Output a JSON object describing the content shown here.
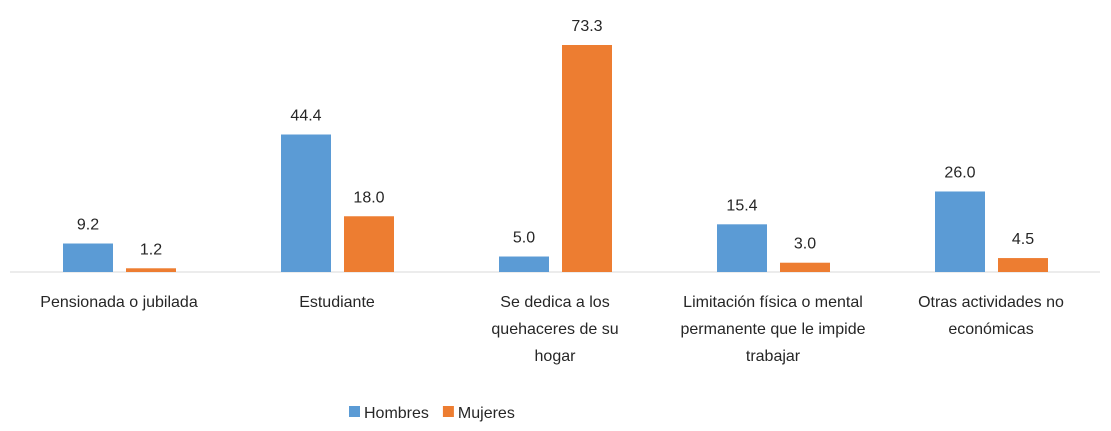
{
  "chart_data": {
    "type": "bar",
    "categories": [
      "Pensionada o jubilada",
      "Estudiante",
      "Se dedica a los quehaceres de su hogar",
      "Limitación física o mental permanente que le impide trabajar",
      "Otras actividades no económicas"
    ],
    "series": [
      {
        "name": "Hombres",
        "color": "#5b9bd5",
        "values": [
          9.2,
          44.4,
          5.0,
          15.4,
          26.0
        ],
        "value_labels": [
          "9.2",
          "44.4",
          "5.0",
          "15.4",
          "26.0"
        ]
      },
      {
        "name": "Mujeres",
        "color": "#ed7d31",
        "values": [
          1.2,
          18.0,
          73.3,
          3.0,
          4.5
        ],
        "value_labels": [
          "1.2",
          "18.0",
          "73.3",
          "3.0",
          "4.5"
        ]
      }
    ],
    "legend": "bottom"
  }
}
